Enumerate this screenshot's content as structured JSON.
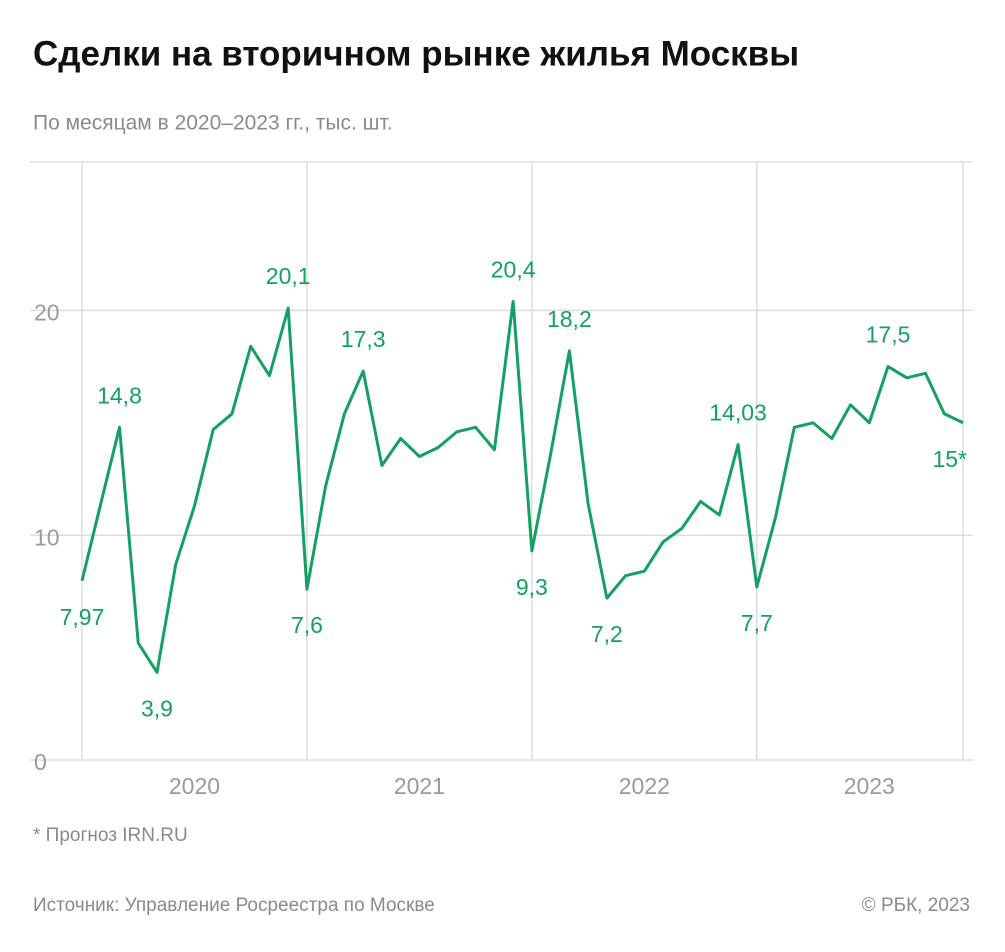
{
  "chart_data": {
    "type": "line",
    "title": "Сделки на вторичном рынке жилья Москвы",
    "subtitle": "По месяцам в 2020–2023 гг., тыс. шт.",
    "footnote": "* Прогноз IRN.RU",
    "source": "Источник: Управление Росреестра по Москве",
    "credit": "© РБК, 2023",
    "categories": [
      null,
      null,
      null,
      null,
      null,
      null,
      "2020",
      null,
      null,
      null,
      null,
      null,
      null,
      null,
      null,
      null,
      null,
      null,
      "2021",
      null,
      null,
      null,
      null,
      null,
      null,
      null,
      null,
      null,
      null,
      null,
      "2022",
      null,
      null,
      null,
      null,
      null,
      null,
      null,
      null,
      null,
      null,
      null,
      "2023",
      null,
      null,
      null,
      null,
      null
    ],
    "ylim": [
      0,
      26.6
    ],
    "yticks": [
      0,
      10,
      20
    ],
    "grid": true,
    "series": [
      {
        "color": "#14a064",
        "values": [
          7.97,
          11.4,
          14.8,
          5.2,
          3.9,
          8.7,
          11.3,
          14.7,
          15.4,
          18.4,
          17.1,
          20.1,
          7.6,
          12.2,
          15.4,
          17.3,
          13.1,
          14.3,
          13.5,
          13.9,
          14.6,
          14.8,
          13.8,
          20.4,
          9.3,
          13.6,
          18.2,
          11.4,
          7.2,
          8.2,
          8.4,
          9.7,
          10.3,
          11.5,
          10.9,
          14.03,
          7.7,
          10.8,
          14.8,
          15.0,
          14.3,
          15.8,
          15.0,
          17.5,
          17.0,
          17.2,
          15.4,
          15
        ],
        "value_labels": [
          "7,97",
          null,
          "14,8",
          null,
          "3,9",
          null,
          null,
          null,
          null,
          null,
          null,
          "20,1",
          "7,6",
          null,
          null,
          "17,3",
          null,
          null,
          null,
          null,
          null,
          null,
          null,
          "20,4",
          "9,3",
          null,
          "18,2",
          null,
          "7,2",
          null,
          null,
          null,
          null,
          null,
          null,
          "14,03",
          "7,7",
          null,
          null,
          null,
          null,
          null,
          null,
          "17,5",
          null,
          null,
          null,
          "15*"
        ]
      }
    ]
  }
}
